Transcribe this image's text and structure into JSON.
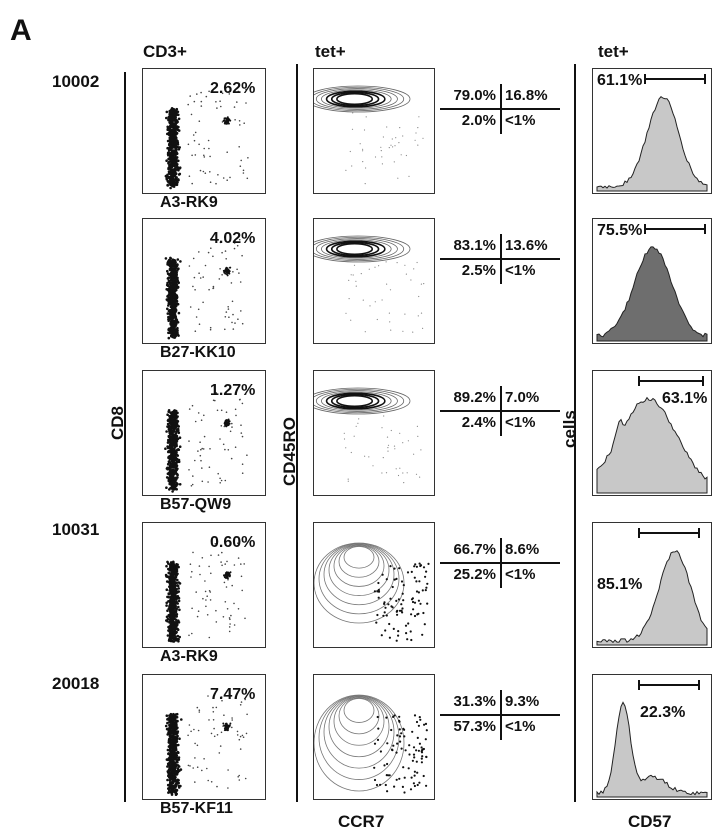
{
  "panel_label": "A",
  "column_headers": {
    "cd8": "CD3+",
    "memory": "tet+",
    "cd57": "tet+"
  },
  "axis_labels": {
    "cd8_y": "CD8",
    "memory_y": "CD45RO",
    "memory_x": "CCR7",
    "cd57_y": "cells",
    "cd57_x": "CD57"
  },
  "rows": [
    {
      "sample_id": "10002",
      "epitope": "A3-RK9",
      "tet_pct": "2.62%",
      "quadrants": {
        "tl": "79.0%",
        "tr": "16.8%",
        "bl": "2.0%",
        "br": "<1%"
      },
      "cd57_pct": "61.1%"
    },
    {
      "sample_id": "",
      "epitope": "B27-KK10",
      "tet_pct": "4.02%",
      "quadrants": {
        "tl": "83.1%",
        "tr": "13.6%",
        "bl": "2.5%",
        "br": "<1%"
      },
      "cd57_pct": "75.5%"
    },
    {
      "sample_id": "",
      "epitope": "B57-QW9",
      "tet_pct": "1.27%",
      "quadrants": {
        "tl": "89.2%",
        "tr": "7.0%",
        "bl": "2.4%",
        "br": "<1%"
      },
      "cd57_pct": "63.1%"
    },
    {
      "sample_id": "10031",
      "epitope": "A3-RK9",
      "tet_pct": "0.60%",
      "quadrants": {
        "tl": "66.7%",
        "tr": "8.6%",
        "bl": "25.2%",
        "br": "<1%"
      },
      "cd57_pct": "85.1%"
    },
    {
      "sample_id": "20018",
      "epitope": "B57-KF11",
      "tet_pct": "7.47%",
      "quadrants": {
        "tl": "31.3%",
        "tr": "9.3%",
        "bl": "57.3%",
        "br": "<1%"
      },
      "cd57_pct": "22.3%"
    }
  ],
  "colors": {
    "ink": "#111111",
    "histogram_fill_light": "#c8c8c8",
    "histogram_fill_dark": "#6e6e6e"
  }
}
